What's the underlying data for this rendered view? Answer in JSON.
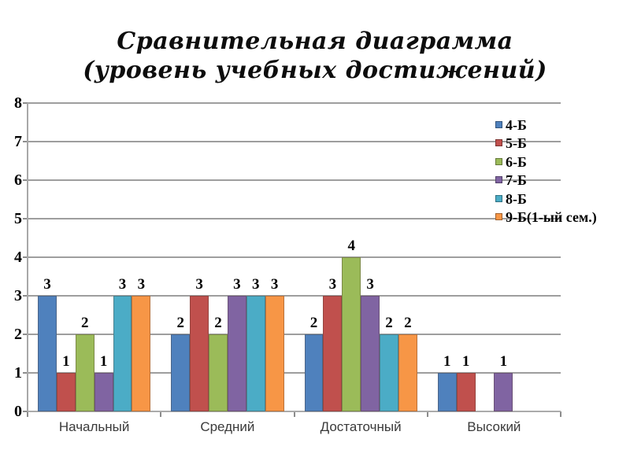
{
  "slide": {
    "title_line1": "Сравнительная диаграмма",
    "title_line2": "(уровень учебных достижений)"
  },
  "chart_data": {
    "type": "bar",
    "title": "Сравнительная диаграмма (уровень учебных достижений)",
    "categories": [
      "Начальный",
      "Средний",
      "Достаточный",
      "Высокий"
    ],
    "series": [
      {
        "name": "4-Б",
        "color": "#4F81BD",
        "values": [
          3,
          2,
          2,
          1
        ]
      },
      {
        "name": "5-Б",
        "color": "#C0504D",
        "values": [
          1,
          3,
          3,
          1
        ]
      },
      {
        "name": "6-Б",
        "color": "#9BBB59",
        "values": [
          2,
          2,
          4,
          0
        ]
      },
      {
        "name": "7-Б",
        "color": "#8064A2",
        "values": [
          1,
          3,
          3,
          1
        ]
      },
      {
        "name": "8-Б",
        "color": "#4BACC6",
        "values": [
          3,
          3,
          2,
          0
        ]
      },
      {
        "name": "9-Б(1-ый сем.)",
        "color": "#F79646",
        "values": [
          3,
          3,
          2,
          0
        ]
      }
    ],
    "ylim": [
      0,
      8
    ],
    "yticks": [
      0,
      1,
      2,
      3,
      4,
      5,
      6,
      7,
      8
    ],
    "grid": true,
    "legend_position": "right",
    "data_labels": true,
    "data_labels_hide_zero": true,
    "gridline_color": "#9e9e9e",
    "axis_color": "#a8a8a8",
    "category_label_color": "#3a3a3a"
  }
}
